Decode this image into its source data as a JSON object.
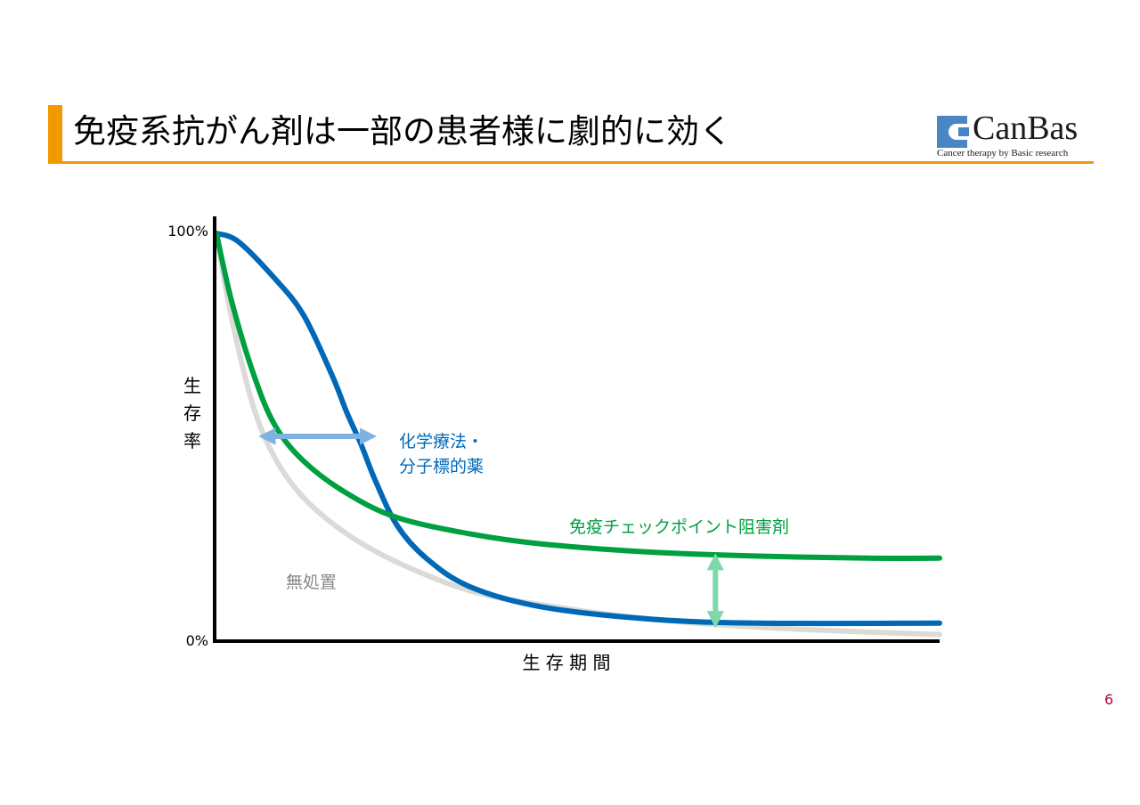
{
  "slide": {
    "title": "免疫系抗がん剤は一部の患者様に劇的に効く",
    "page_number": "6",
    "accent_color": "#f39800"
  },
  "logo": {
    "name": "CanBas",
    "tagline": "Cancer therapy by Basic research",
    "icon": "canbas-logo-icon",
    "color": "#4a86c5"
  },
  "chart_data": {
    "type": "line",
    "xlabel": "生 存 期 間",
    "ylabel": "生\n存\n率",
    "y_ticks": [
      "100%",
      "0%"
    ],
    "ylim": [
      0,
      100
    ],
    "xlim": [
      0,
      100
    ],
    "grid": false,
    "series": [
      {
        "name": "無処置",
        "color": "#dcdad6",
        "label_color": "#888888",
        "x": [
          0,
          2,
          5,
          8,
          12,
          18,
          25,
          35,
          45,
          60,
          75,
          90,
          100
        ],
        "y": [
          100,
          80,
          58,
          45,
          35,
          26,
          19,
          12,
          8.5,
          5,
          3,
          1.8,
          1.2
        ]
      },
      {
        "name": "化学療法・\n分子標的薬",
        "color": "#0068b7",
        "label_color": "#0068b7",
        "x": [
          0,
          3,
          8,
          12,
          16,
          18,
          20,
          22,
          25,
          29,
          35,
          45,
          60,
          75,
          100
        ],
        "y": [
          100,
          98,
          89,
          80,
          65,
          56,
          48,
          39,
          28,
          20,
          13,
          8,
          5,
          4,
          4
        ]
      },
      {
        "name": "免疫チェックポイント阻害剤",
        "color": "#00a040",
        "label_color": "#00a040",
        "x": [
          0,
          2,
          5,
          8,
          12,
          18,
          25,
          35,
          45,
          60,
          75,
          90,
          100
        ],
        "y": [
          100,
          84,
          66,
          53,
          44,
          36,
          30,
          26,
          23.5,
          21.5,
          20.5,
          20,
          20
        ]
      }
    ],
    "annotations": [
      {
        "type": "double-arrow-horizontal",
        "color": "#7fb2e0",
        "x": [
          7,
          21
        ],
        "y": 50
      },
      {
        "type": "double-arrow-vertical",
        "color": "#7fd8a8",
        "x": 69,
        "y": [
          4,
          20
        ]
      }
    ]
  }
}
